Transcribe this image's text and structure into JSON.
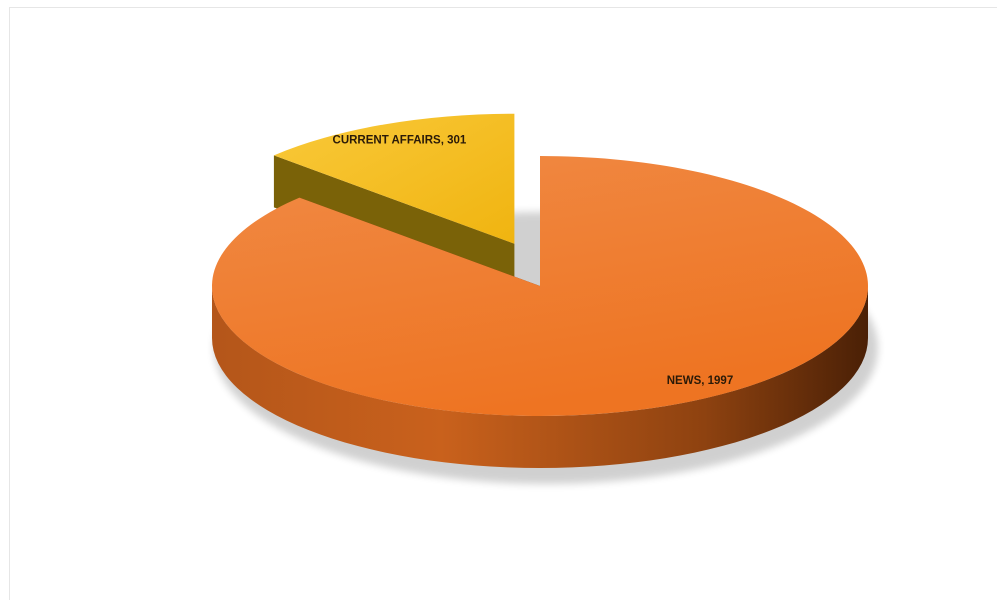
{
  "chart_data": {
    "type": "pie",
    "style": "3d-exploded",
    "slices": [
      {
        "name": "CURRENT AFFAIRS",
        "value": 301,
        "label": "CURRENT AFFAIRS, 301",
        "color": "#F7BE1C",
        "side_color": "#7A6208"
      },
      {
        "name": "NEWS",
        "value": 1997,
        "label": "NEWS, 1997",
        "color": "#EF7A2A",
        "side_color": "#8A3E0E"
      }
    ],
    "title": "",
    "legend": "none"
  }
}
